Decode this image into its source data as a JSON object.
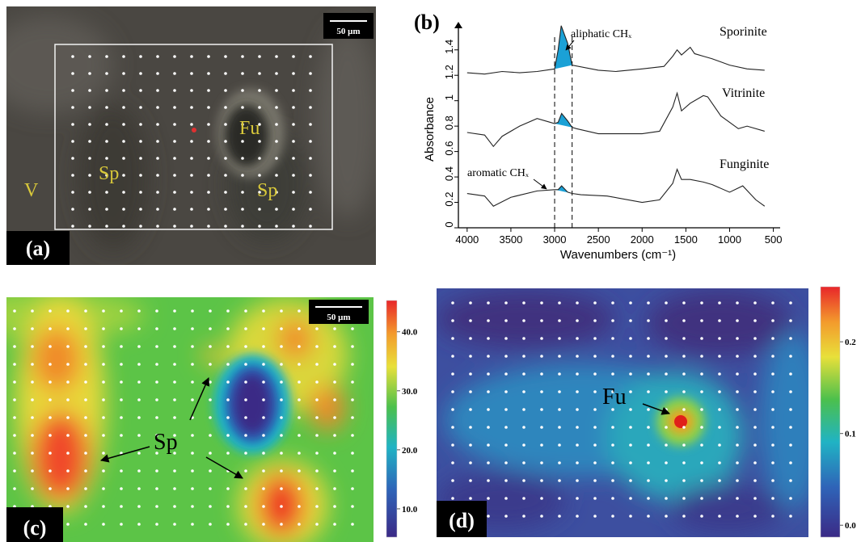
{
  "panel_a": {
    "label": "(a)",
    "scale_bar": "50 μm",
    "regions": [
      "V",
      "Sp",
      "Fu",
      "Sp"
    ]
  },
  "chart_data": {
    "type": "line",
    "label": "(b)",
    "xlabel": "Wavenumbers (cm⁻¹)",
    "ylabel": "Absorbance",
    "xlim": [
      4100,
      450
    ],
    "ylim": [
      0,
      1.57
    ],
    "xticks": [
      4000,
      3500,
      3000,
      2500,
      2000,
      1500,
      1000,
      500
    ],
    "yticks": [
      0,
      0.2,
      0.4,
      0.6,
      0.8,
      1.0,
      1.2,
      1.4
    ],
    "reference_lines_x": [
      3000,
      2800
    ],
    "fill_color": "#1ba1d6",
    "annotations": [
      "aliphatic CHₓ",
      "aromatic CHₓ"
    ],
    "series": [
      {
        "name": "Sporinite",
        "color": "#222222",
        "x": [
          4000,
          3800,
          3600,
          3400,
          3200,
          3000,
          2960,
          2925,
          2850,
          2800,
          2500,
          2300,
          2000,
          1750,
          1650,
          1600,
          1550,
          1450,
          1400,
          1300,
          1200,
          1000,
          800,
          600
        ],
        "values": [
          1.22,
          1.21,
          1.23,
          1.22,
          1.23,
          1.25,
          1.4,
          1.59,
          1.45,
          1.28,
          1.24,
          1.23,
          1.25,
          1.27,
          1.35,
          1.4,
          1.36,
          1.42,
          1.37,
          1.35,
          1.33,
          1.28,
          1.25,
          1.24
        ]
      },
      {
        "name": "Vitrinite",
        "color": "#222222",
        "x": [
          4000,
          3800,
          3700,
          3600,
          3400,
          3200,
          3050,
          3000,
          2960,
          2920,
          2850,
          2800,
          2750,
          2500,
          2000,
          1800,
          1650,
          1600,
          1550,
          1450,
          1300,
          1250,
          1100,
          900,
          800,
          600
        ],
        "values": [
          0.75,
          0.73,
          0.64,
          0.72,
          0.8,
          0.86,
          0.83,
          0.82,
          0.83,
          0.9,
          0.84,
          0.79,
          0.78,
          0.74,
          0.74,
          0.76,
          0.95,
          1.06,
          0.92,
          0.98,
          1.04,
          1.03,
          0.88,
          0.78,
          0.8,
          0.76
        ]
      },
      {
        "name": "Funginite",
        "color": "#222222",
        "x": [
          4000,
          3800,
          3700,
          3500,
          3200,
          3000,
          2960,
          2920,
          2850,
          2800,
          2700,
          2400,
          2000,
          1800,
          1650,
          1600,
          1550,
          1450,
          1300,
          1200,
          1000,
          850,
          700,
          600
        ],
        "values": [
          0.27,
          0.25,
          0.17,
          0.24,
          0.29,
          0.3,
          0.3,
          0.33,
          0.28,
          0.27,
          0.26,
          0.25,
          0.2,
          0.22,
          0.35,
          0.46,
          0.38,
          0.38,
          0.36,
          0.34,
          0.28,
          0.33,
          0.22,
          0.17
        ]
      }
    ]
  },
  "panel_c": {
    "label": "(c)",
    "scale_bar": "50 μm",
    "annotation": "Sp",
    "colorbar_lim": [
      5.2,
      45.3
    ],
    "colorbar_ticks": [
      {
        "value": 10,
        "label": "10.0"
      },
      {
        "value": 20,
        "label": "20.0"
      },
      {
        "value": 30,
        "label": "30.0"
      },
      {
        "value": 40,
        "label": "40.0"
      }
    ]
  },
  "panel_d": {
    "label": "(d)",
    "annotation": "Fu",
    "colorbar_lim": [
      -0.013,
      0.26
    ],
    "colorbar_ticks": [
      {
        "value": 0,
        "label": "0.0"
      },
      0.1,
      0.2
    ]
  }
}
